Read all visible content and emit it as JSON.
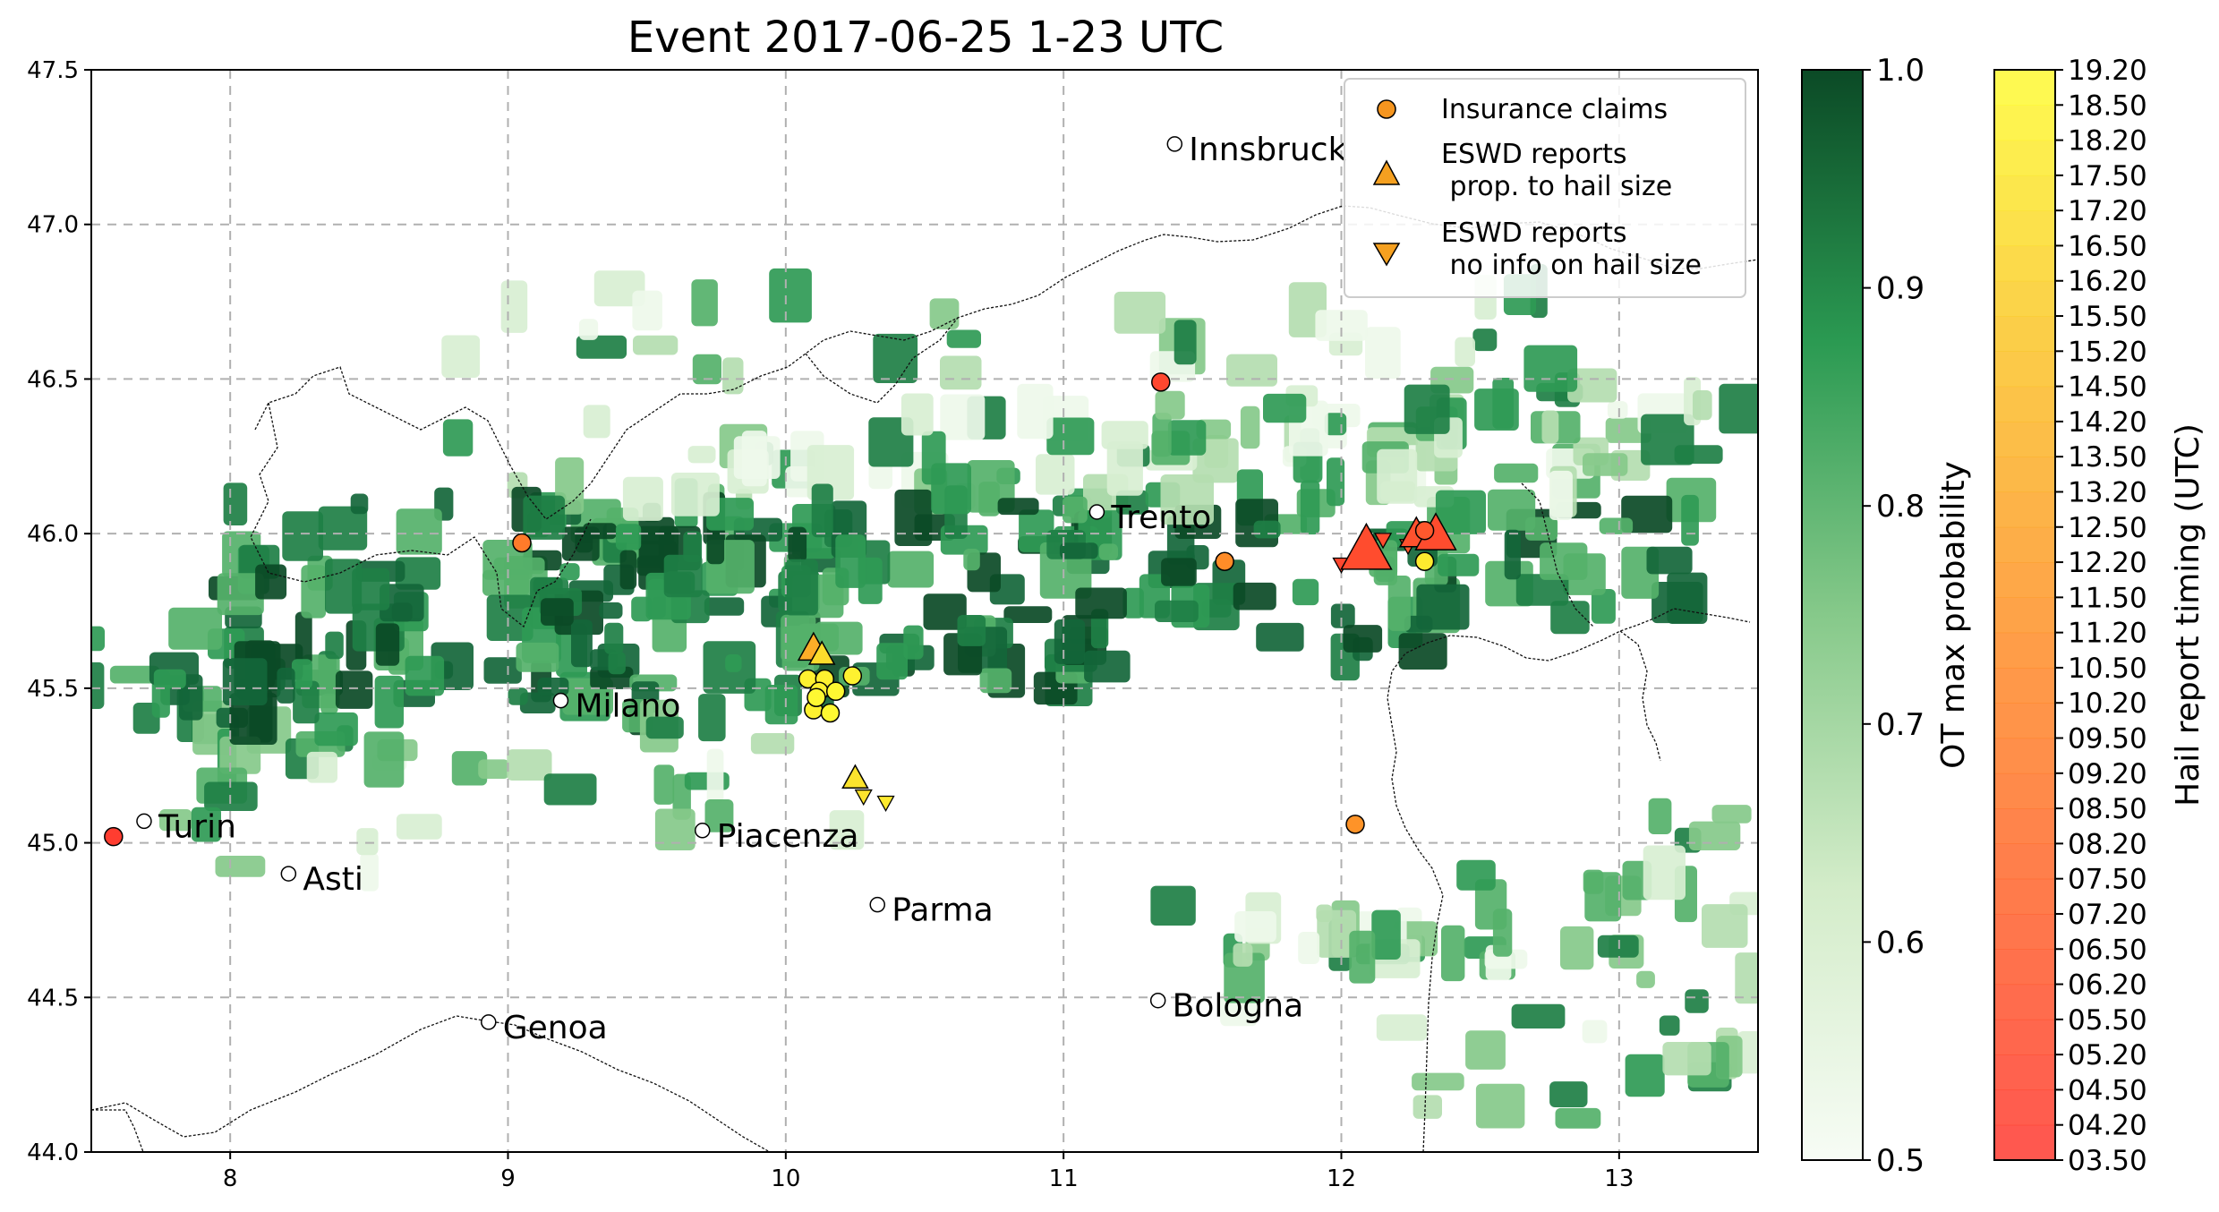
{
  "title": "Event 2017-06-25 1-23 UTC",
  "map": {
    "lon_range": [
      7.5,
      13.5
    ],
    "lat_range": [
      44.0,
      47.5
    ],
    "x_ticks": [
      "8",
      "9",
      "10",
      "11",
      "12",
      "13"
    ],
    "y_ticks": [
      "44.0",
      "44.5",
      "45.0",
      "45.5",
      "46.0",
      "46.5",
      "47.0",
      "47.5"
    ],
    "x_tick_values": [
      8,
      9,
      10,
      11,
      12,
      13
    ],
    "y_tick_values": [
      44.0,
      44.5,
      45.0,
      45.5,
      46.0,
      46.5,
      47.0,
      47.5
    ],
    "cities": [
      {
        "name": "Innsbruck",
        "lon": 11.4,
        "lat": 47.26
      },
      {
        "name": "Trento",
        "lon": 11.12,
        "lat": 46.07
      },
      {
        "name": "Milano",
        "lon": 9.19,
        "lat": 45.46
      },
      {
        "name": "Turin",
        "lon": 7.69,
        "lat": 45.07
      },
      {
        "name": "Piacenza",
        "lon": 9.7,
        "lat": 45.04
      },
      {
        "name": "Asti",
        "lon": 8.21,
        "lat": 44.9
      },
      {
        "name": "Parma",
        "lon": 10.33,
        "lat": 44.8
      },
      {
        "name": "Bologna",
        "lon": 11.34,
        "lat": 44.49
      },
      {
        "name": "Genoa",
        "lon": 8.93,
        "lat": 44.42
      }
    ],
    "insurance_claims": [
      {
        "lon": 7.58,
        "lat": 45.02,
        "time": "04.00"
      },
      {
        "lon": 9.05,
        "lat": 45.97,
        "time": "09.20"
      },
      {
        "lon": 11.35,
        "lat": 46.49,
        "time": "04.50"
      },
      {
        "lon": 11.58,
        "lat": 45.91,
        "time": "10.50"
      },
      {
        "lon": 12.05,
        "lat": 45.06,
        "time": "11.20"
      },
      {
        "lon": 12.3,
        "lat": 46.01,
        "time": "06.20"
      },
      {
        "lon": 12.3,
        "lat": 45.91,
        "time": "17.50"
      },
      {
        "lon": 10.08,
        "lat": 45.53,
        "time": "18.20"
      },
      {
        "lon": 10.14,
        "lat": 45.53,
        "time": "18.20"
      },
      {
        "lon": 10.12,
        "lat": 45.49,
        "time": "18.20"
      },
      {
        "lon": 10.18,
        "lat": 45.49,
        "time": "18.50"
      },
      {
        "lon": 10.24,
        "lat": 45.54,
        "time": "18.20"
      },
      {
        "lon": 10.1,
        "lat": 45.43,
        "time": "18.20"
      },
      {
        "lon": 10.16,
        "lat": 45.42,
        "time": "18.50"
      },
      {
        "lon": 10.11,
        "lat": 45.47,
        "time": "18.50"
      }
    ],
    "eswd_size": [
      {
        "lon": 10.1,
        "lat": 45.63,
        "size": 1.2,
        "time": "13.20"
      },
      {
        "lon": 10.13,
        "lat": 45.61,
        "size": 1.0,
        "time": "16.50"
      },
      {
        "lon": 10.25,
        "lat": 45.21,
        "size": 1.0,
        "time": "17.20"
      },
      {
        "lon": 12.09,
        "lat": 45.95,
        "size": 2.0,
        "time": "05.20"
      },
      {
        "lon": 12.27,
        "lat": 46.0,
        "size": 1.3,
        "time": "05.50"
      },
      {
        "lon": 12.34,
        "lat": 46.0,
        "size": 1.6,
        "time": "05.20"
      }
    ],
    "eswd_nosize": [
      {
        "lon": 10.28,
        "lat": 45.15,
        "time": "17.20"
      },
      {
        "lon": 10.36,
        "lat": 45.13,
        "time": "17.50"
      },
      {
        "lon": 12.0,
        "lat": 45.9,
        "time": "04.50"
      },
      {
        "lon": 12.15,
        "lat": 45.98,
        "time": "05.20"
      },
      {
        "lon": 12.24,
        "lat": 45.96,
        "time": "06.20"
      }
    ]
  },
  "legend": {
    "insurance": "Insurance claims",
    "eswd_size_line1": "ESWD reports",
    "eswd_size_line2": " prop. to hail size",
    "eswd_nosize_line1": "ESWD reports",
    "eswd_nosize_line2": " no info on hail size"
  },
  "colorbar_prob": {
    "label": "OT max probability",
    "range": [
      0.5,
      1.0
    ],
    "ticks": [
      "0.5",
      "0.6",
      "0.7",
      "0.8",
      "0.9",
      "1.0"
    ],
    "tick_values": [
      0.5,
      0.6,
      0.7,
      0.8,
      0.9,
      1.0
    ]
  },
  "colorbar_time": {
    "label": "Hail report timing (UTC)",
    "ticks": [
      "03.50",
      "04.20",
      "04.50",
      "05.20",
      "05.50",
      "06.20",
      "06.50",
      "07.20",
      "07.50",
      "08.20",
      "08.50",
      "09.20",
      "09.50",
      "10.20",
      "10.50",
      "11.20",
      "11.50",
      "12.20",
      "12.50",
      "13.20",
      "13.50",
      "14.20",
      "14.50",
      "15.20",
      "15.50",
      "16.20",
      "16.50",
      "17.20",
      "17.50",
      "18.20",
      "18.50",
      "19.20"
    ]
  },
  "colors": {
    "insurance": "#f5951f",
    "eswd": "#f5a020",
    "prob_low": "#f7fcf5",
    "prob_high": "#00441b",
    "time_low": "#ff3b30",
    "time_high": "#ffff33",
    "city_marker": "#ffffff"
  }
}
